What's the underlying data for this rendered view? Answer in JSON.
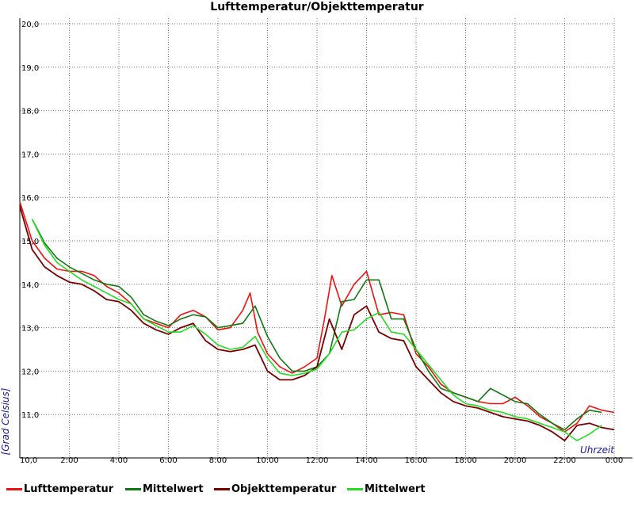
{
  "chart_data": {
    "type": "line",
    "title": "Lufttemperatur/Objekttemperatur",
    "xlabel": "Uhrzeit",
    "ylabel": "[Grad Celsius]",
    "ylim": [
      10.0,
      20.0
    ],
    "xlim": [
      0,
      24
    ],
    "grid": true,
    "legend_position": "bottom",
    "x_tick_labels": [
      "10,0",
      "2:00",
      "4:00",
      "6:00",
      "8:00",
      "10:00",
      "12:00",
      "14:00",
      "16:00",
      "18:00",
      "20:00",
      "22:00",
      "0:00"
    ],
    "y_tick_labels": [
      "20,0",
      "19,0",
      "18,0",
      "17,0",
      "16,0",
      "15,0",
      "14,0",
      "13,0",
      "12,0",
      "11,0"
    ],
    "series": [
      {
        "name": "Lufttemperatur",
        "color": "#ee1111",
        "x": [
          0,
          0.5,
          1,
          1.5,
          2,
          2.5,
          3,
          3.5,
          4,
          4.5,
          5,
          5.5,
          6,
          6.5,
          7,
          7.5,
          8,
          8.5,
          9,
          9.3,
          9.6,
          10,
          10.5,
          11,
          11.5,
          12,
          12.3,
          12.6,
          13,
          13.5,
          14,
          14.5,
          15,
          15.5,
          16,
          16.5,
          17,
          17.5,
          18,
          18.5,
          19,
          19.5,
          20,
          20.5,
          21,
          21.5,
          22,
          22.5,
          23,
          23.5,
          24
        ],
        "y": [
          15.9,
          15.0,
          14.6,
          14.35,
          14.3,
          14.3,
          14.2,
          13.95,
          13.8,
          13.55,
          13.2,
          13.1,
          13.0,
          13.3,
          13.4,
          13.25,
          12.95,
          13.0,
          13.4,
          13.8,
          12.9,
          12.4,
          12.1,
          11.95,
          12.1,
          12.3,
          13.2,
          14.2,
          13.5,
          14.0,
          14.3,
          13.3,
          13.35,
          13.3,
          12.4,
          12.1,
          11.7,
          11.5,
          11.4,
          11.3,
          11.25,
          11.25,
          11.4,
          11.2,
          10.95,
          10.8,
          10.6,
          10.8,
          11.2,
          11.1,
          11.05
        ]
      },
      {
        "name": "Mittelwert",
        "color": "#117711",
        "x": [
          0.5,
          1,
          1.5,
          2,
          2.5,
          3,
          3.5,
          4,
          4.5,
          5,
          5.5,
          6,
          6.5,
          7,
          7.5,
          8,
          8.5,
          9,
          9.5,
          10,
          10.5,
          11,
          11.5,
          12,
          12.5,
          13,
          13.5,
          14,
          14.5,
          15,
          15.5,
          16,
          16.5,
          17,
          17.5,
          18,
          18.5,
          19,
          19.5,
          20,
          20.5,
          21,
          21.5,
          22,
          22.5,
          23,
          23.5
        ],
        "y": [
          15.5,
          14.95,
          14.6,
          14.4,
          14.25,
          14.1,
          14.0,
          13.95,
          13.7,
          13.3,
          13.15,
          13.05,
          13.2,
          13.3,
          13.25,
          13.0,
          13.05,
          13.1,
          13.5,
          12.8,
          12.3,
          12.0,
          12.0,
          12.1,
          12.4,
          13.6,
          13.65,
          14.1,
          14.1,
          13.2,
          13.2,
          12.5,
          12.0,
          11.6,
          11.5,
          11.4,
          11.3,
          11.6,
          11.45,
          11.3,
          11.25,
          11.0,
          10.8,
          10.65,
          10.9,
          11.1,
          11.05
        ]
      },
      {
        "name": "Objekttemperatur",
        "color": "#7a0000",
        "x": [
          0,
          0.5,
          1,
          1.5,
          2,
          2.5,
          3,
          3.5,
          4,
          4.5,
          5,
          5.5,
          6,
          6.5,
          7,
          7.5,
          8,
          8.5,
          9,
          9.5,
          10,
          10.5,
          11,
          11.5,
          12,
          12.5,
          13,
          13.5,
          14,
          14.5,
          15,
          15.5,
          16,
          16.5,
          17,
          17.5,
          18,
          18.5,
          19,
          19.5,
          20,
          20.5,
          21,
          21.5,
          22,
          22.5,
          23,
          23.5,
          24
        ],
        "y": [
          15.8,
          14.8,
          14.4,
          14.2,
          14.05,
          14.0,
          13.85,
          13.65,
          13.6,
          13.4,
          13.1,
          12.95,
          12.85,
          13.0,
          13.1,
          12.7,
          12.5,
          12.45,
          12.5,
          12.6,
          12.0,
          11.8,
          11.8,
          11.9,
          12.1,
          13.2,
          12.5,
          13.3,
          13.5,
          12.9,
          12.75,
          12.7,
          12.1,
          11.8,
          11.5,
          11.3,
          11.2,
          11.15,
          11.05,
          10.95,
          10.9,
          10.85,
          10.75,
          10.6,
          10.4,
          10.75,
          10.8,
          10.7,
          10.65
        ]
      },
      {
        "name": "Mittelwert",
        "color": "#22dd22",
        "x": [
          0.5,
          1,
          1.5,
          2,
          2.5,
          3,
          3.5,
          4,
          4.5,
          5,
          5.5,
          6,
          6.5,
          7,
          7.5,
          8,
          8.5,
          9,
          9.5,
          10,
          10.5,
          11,
          11.5,
          12,
          12.5,
          13,
          13.5,
          14,
          14.5,
          15,
          15.5,
          16,
          16.5,
          17,
          17.5,
          18,
          18.5,
          19,
          19.5,
          20,
          20.5,
          21,
          21.5,
          22,
          22.5,
          23,
          23.5
        ],
        "y": [
          15.5,
          14.9,
          14.5,
          14.3,
          14.1,
          13.95,
          13.8,
          13.65,
          13.55,
          13.2,
          13.05,
          12.9,
          12.9,
          13.05,
          12.85,
          12.6,
          12.5,
          12.55,
          12.8,
          12.3,
          11.95,
          11.9,
          11.95,
          12.05,
          12.4,
          12.9,
          12.95,
          13.2,
          13.35,
          12.9,
          12.85,
          12.5,
          12.15,
          11.8,
          11.45,
          11.25,
          11.2,
          11.1,
          11.05,
          10.95,
          10.9,
          10.8,
          10.7,
          10.6,
          10.4,
          10.55,
          10.75
        ]
      }
    ]
  }
}
